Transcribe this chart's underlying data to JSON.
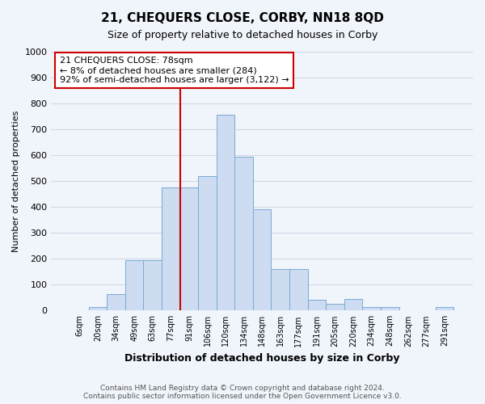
{
  "title": "21, CHEQUERS CLOSE, CORBY, NN18 8QD",
  "subtitle": "Size of property relative to detached houses in Corby",
  "xlabel": "Distribution of detached houses by size in Corby",
  "ylabel": "Number of detached properties",
  "bar_color": "#cddcf0",
  "bar_edge_color": "#7aaad4",
  "reference_line_color": "#cc0000",
  "annotation_text": "21 CHEQUERS CLOSE: 78sqm\n← 8% of detached houses are smaller (284)\n92% of semi-detached houses are larger (3,122) →",
  "annotation_box_edge_color": "#cc0000",
  "categories": [
    "6sqm",
    "20sqm",
    "34sqm",
    "49sqm",
    "63sqm",
    "77sqm",
    "91sqm",
    "106sqm",
    "120sqm",
    "134sqm",
    "148sqm",
    "163sqm",
    "177sqm",
    "191sqm",
    "205sqm",
    "220sqm",
    "234sqm",
    "248sqm",
    "262sqm",
    "277sqm",
    "291sqm"
  ],
  "values": [
    0,
    13,
    62,
    195,
    195,
    475,
    475,
    518,
    757,
    593,
    390,
    160,
    160,
    43,
    27,
    46,
    13,
    13,
    0,
    0,
    13
  ],
  "ref_bar_idx": 5,
  "ylim": [
    0,
    1000
  ],
  "yticks": [
    0,
    100,
    200,
    300,
    400,
    500,
    600,
    700,
    800,
    900,
    1000
  ],
  "footer_text": "Contains HM Land Registry data © Crown copyright and database right 2024.\nContains public sector information licensed under the Open Government Licence v3.0.",
  "grid_color": "#d0d8e8",
  "background_color": "#f0f4fb"
}
